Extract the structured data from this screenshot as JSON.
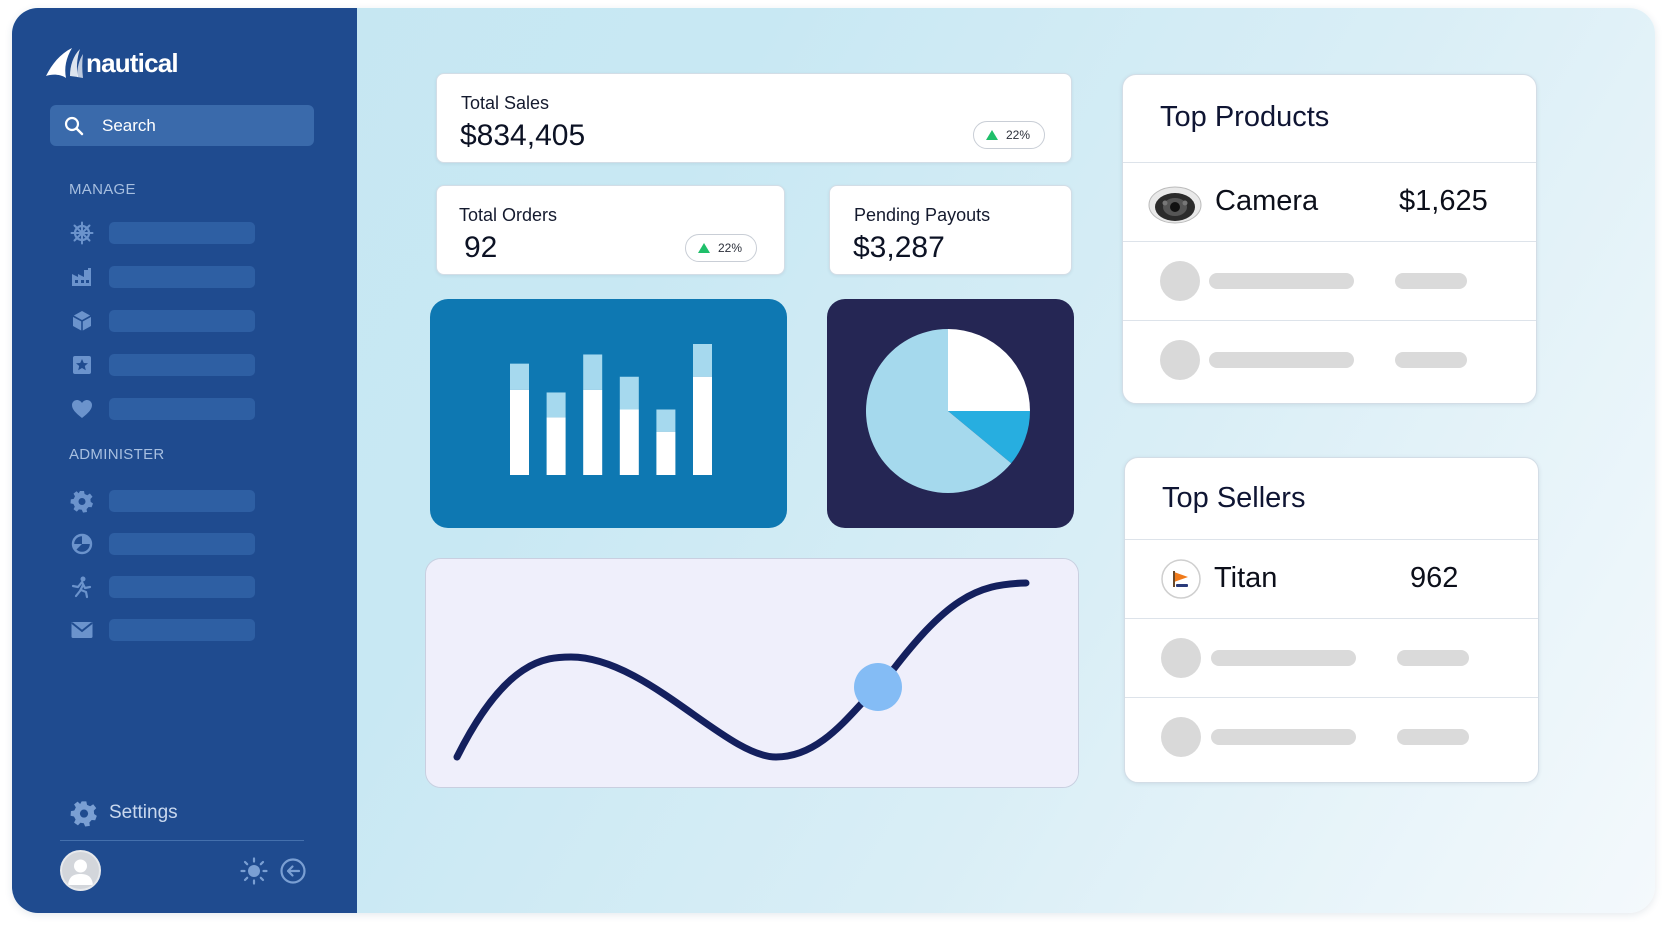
{
  "brand": {
    "name": "nautical"
  },
  "search": {
    "placeholder": "Search"
  },
  "sidebar": {
    "sections": [
      {
        "label": "MANAGE",
        "items": [
          "ship-wheel-icon",
          "factory-icon",
          "box-icon",
          "star-badge-icon",
          "heart-icon"
        ]
      },
      {
        "label": "ADMINISTER",
        "items": [
          "cog-icon",
          "pie-chart-icon",
          "person-run-icon",
          "mail-icon"
        ]
      }
    ],
    "settings_label": "Settings"
  },
  "stats": {
    "total_sales": {
      "label": "Total Sales",
      "value": "$834,405",
      "change": "22%"
    },
    "total_orders": {
      "label": "Total Orders",
      "value": "92",
      "change": "22%"
    },
    "pending_payouts": {
      "label": "Pending Payouts",
      "value": "$3,287"
    }
  },
  "bar_chart": {
    "type": "bar",
    "bars": [
      {
        "total": 0.85,
        "highlight": 0.65
      },
      {
        "total": 0.63,
        "highlight": 0.44
      },
      {
        "total": 0.92,
        "highlight": 0.65
      },
      {
        "total": 0.75,
        "highlight": 0.5
      },
      {
        "total": 0.5,
        "highlight": 0.33
      },
      {
        "total": 1.0,
        "highlight": 0.75
      }
    ],
    "colors": {
      "bg": "#0e78b2",
      "bar": "#ffffff",
      "cap": "#a6d9ee"
    }
  },
  "pie_chart": {
    "type": "pie",
    "slices": [
      {
        "value": 25,
        "color": "#ffffff"
      },
      {
        "value": 11,
        "color": "#27aee0"
      },
      {
        "value": 64,
        "color": "#a5d9ed"
      }
    ],
    "colors": {
      "bg": "#252654"
    }
  },
  "line_chart": {
    "type": "line",
    "colors": {
      "bg": "#efeffb",
      "line": "#14205e",
      "marker": "#84bcf5"
    }
  },
  "top_products": {
    "title": "Top Products",
    "items": [
      {
        "name": "Camera",
        "value": "$1,625",
        "icon": "camera-icon"
      }
    ]
  },
  "top_sellers": {
    "title": "Top Sellers",
    "items": [
      {
        "name": "Titan",
        "value": "962",
        "icon": "seller-logo-icon"
      }
    ]
  },
  "colors": {
    "sidebar": "#1f4b8f",
    "accent_up": "#1fbf6a"
  }
}
